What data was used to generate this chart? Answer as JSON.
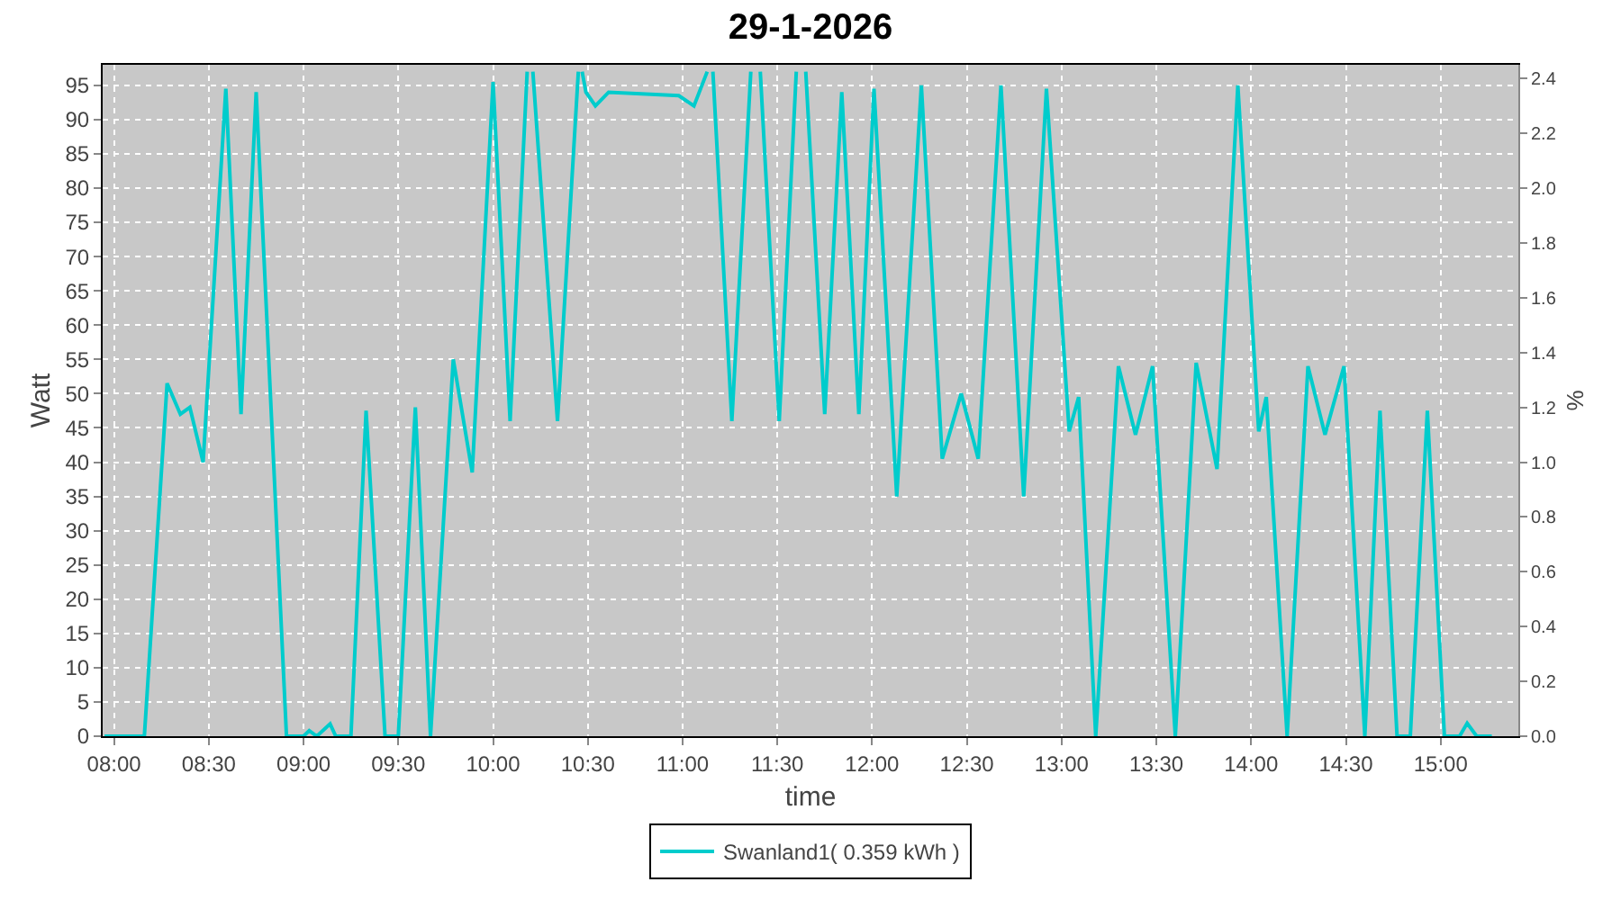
{
  "chart_data": {
    "type": "line",
    "title": "29-1-2026",
    "xlabel": "time",
    "ylabel": "Watt",
    "y2label": "%",
    "x": [
      7.95,
      8.16,
      8.28,
      8.35,
      8.4,
      8.47,
      8.59,
      8.67,
      8.75,
      8.91,
      9.0,
      9.03,
      9.07,
      9.14,
      9.17,
      9.25,
      9.33,
      9.43,
      9.5,
      9.59,
      9.67,
      9.79,
      9.89,
      10.0,
      10.09,
      10.18,
      10.195,
      10.21,
      10.34,
      10.45,
      10.46,
      10.47,
      10.49,
      10.54,
      10.61,
      10.98,
      11.06,
      11.13,
      11.145,
      11.16,
      11.26,
      11.36,
      11.385,
      11.41,
      11.51,
      11.6,
      11.625,
      11.65,
      11.75,
      11.84,
      11.93,
      12.01,
      12.13,
      12.26,
      12.37,
      12.47,
      12.56,
      12.68,
      12.8,
      12.92,
      13.04,
      13.09,
      13.18,
      13.3,
      13.39,
      13.48,
      13.6,
      13.71,
      13.82,
      13.93,
      14.04,
      14.08,
      14.19,
      14.3,
      14.39,
      14.49,
      14.6,
      14.68,
      14.77,
      14.84,
      14.93,
      15.02,
      15.1,
      15.14,
      15.19,
      15.27
    ],
    "series": [
      {
        "name": "Swanland1( 0.359 kWh )",
        "color": "#00cccc",
        "values": [
          0,
          0,
          51.5,
          47,
          48,
          40,
          94.5,
          47,
          94,
          0,
          0,
          0.8,
          0,
          1.8,
          0,
          0,
          47.5,
          0,
          0,
          48,
          0,
          55,
          38.5,
          95.5,
          46,
          97,
          null,
          97,
          46,
          97,
          null,
          97,
          94,
          92,
          94,
          93.5,
          92,
          97,
          null,
          97,
          46,
          97,
          null,
          97,
          46,
          97,
          null,
          97,
          47,
          94,
          47,
          94.5,
          35,
          95,
          40.5,
          50,
          40.5,
          95,
          35,
          94.5,
          44.5,
          49.5,
          0,
          54,
          44,
          54,
          0,
          54.5,
          39,
          95,
          44.5,
          49.5,
          0,
          54,
          44,
          54,
          0,
          47.5,
          0,
          0,
          47.5,
          0,
          0,
          1.9,
          0,
          0
        ]
      }
    ],
    "xlim": [
      7.94,
      15.41
    ],
    "xticks": [
      {
        "value": 8,
        "label": "08:00"
      },
      {
        "value": 8.5,
        "label": "08:30"
      },
      {
        "value": 9,
        "label": "09:00"
      },
      {
        "value": 9.5,
        "label": "09:30"
      },
      {
        "value": 10,
        "label": "10:00"
      },
      {
        "value": 10.5,
        "label": "10:30"
      },
      {
        "value": 11,
        "label": "11:00"
      },
      {
        "value": 11.5,
        "label": "11:30"
      },
      {
        "value": 12,
        "label": "12:00"
      },
      {
        "value": 12.5,
        "label": "12:30"
      },
      {
        "value": 13,
        "label": "13:00"
      },
      {
        "value": 13.5,
        "label": "13:30"
      },
      {
        "value": 14,
        "label": "14:00"
      },
      {
        "value": 14.5,
        "label": "14:30"
      },
      {
        "value": 15,
        "label": "15:00"
      }
    ],
    "ylim": [
      0,
      98
    ],
    "yticks": [
      0,
      5,
      10,
      15,
      20,
      25,
      30,
      35,
      40,
      45,
      50,
      55,
      60,
      65,
      70,
      75,
      80,
      85,
      90,
      95
    ],
    "y2lim": [
      0,
      2.45
    ],
    "y2ticks": [
      {
        "value": 0,
        "label": "0.0"
      },
      {
        "value": 0.2,
        "label": "0.2"
      },
      {
        "value": 0.4,
        "label": "0.4"
      },
      {
        "value": 0.6,
        "label": "0.6"
      },
      {
        "value": 0.8,
        "label": "0.8"
      },
      {
        "value": 1,
        "label": "1.0"
      },
      {
        "value": 1.2,
        "label": "1.2"
      },
      {
        "value": 1.4,
        "label": "1.4"
      },
      {
        "value": 1.6,
        "label": "1.6"
      },
      {
        "value": 1.8,
        "label": "1.8"
      },
      {
        "value": 2,
        "label": "2.0"
      },
      {
        "value": 2.2,
        "label": "2.2"
      },
      {
        "value": 2.4,
        "label": "2.4"
      }
    ],
    "grid": true,
    "legend": "bottom",
    "marker": "none",
    "line_style": "solid"
  }
}
